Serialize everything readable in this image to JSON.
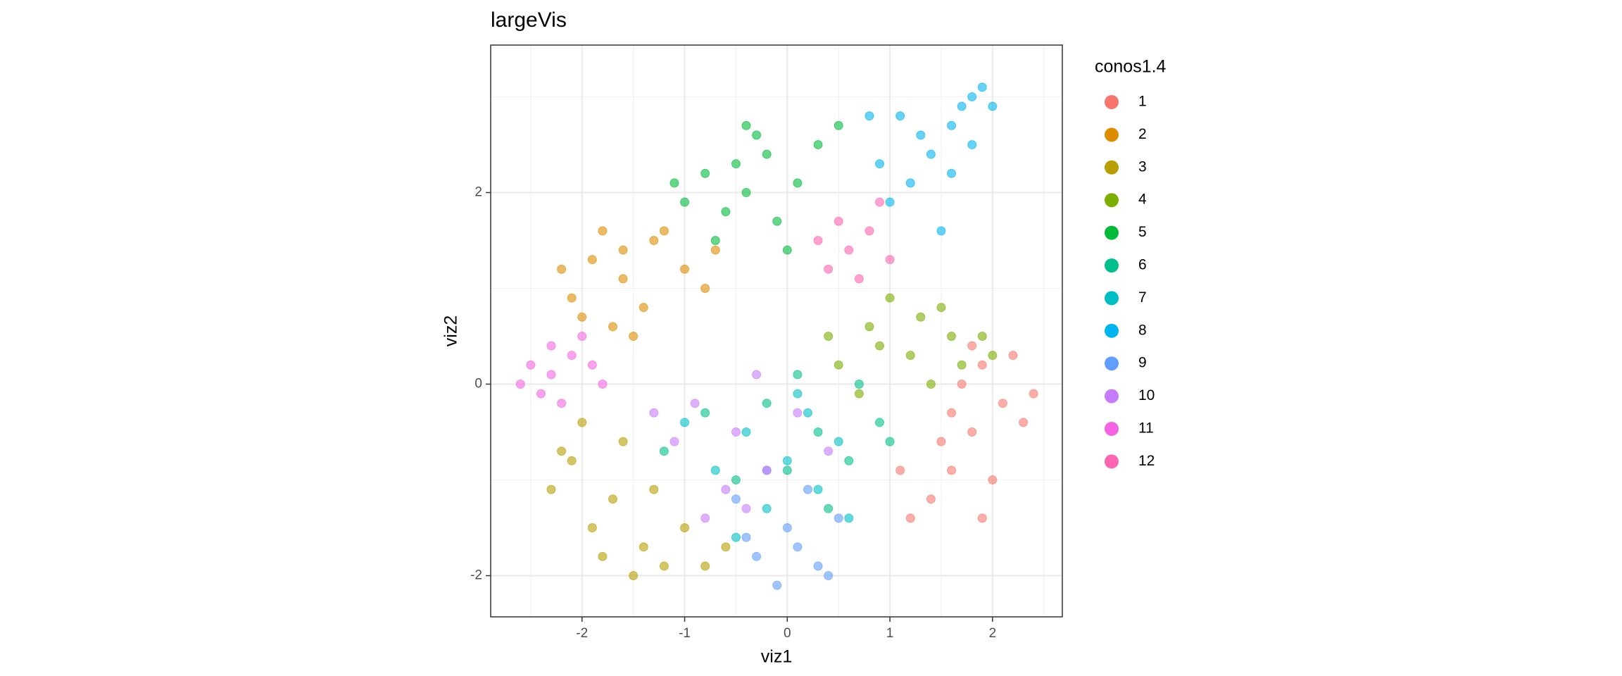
{
  "chart_data": {
    "type": "scatter",
    "title": "largeVis",
    "xlabel": "viz1",
    "ylabel": "viz2",
    "legend_title": "conos1.4",
    "legend": "right",
    "grid": true,
    "xlim": [
      -2.89,
      2.68
    ],
    "ylim": [
      -2.43,
      3.54
    ],
    "xticks": [
      -2,
      -1,
      0,
      1,
      2
    ],
    "yticks": [
      -2,
      0,
      2
    ],
    "x_minor_ticks": [
      -2.5,
      -1.5,
      -0.5,
      0.5,
      1.5,
      2.5
    ],
    "y_minor_ticks": [
      -1,
      1,
      3
    ],
    "series": [
      {
        "name": "1",
        "color": "#F8766D",
        "x": [
          1.8,
          2.1,
          1.6,
          2.3,
          1.9,
          1.4,
          2.0,
          1.7,
          2.2,
          1.5,
          1.2,
          1.9,
          1.6,
          2.4,
          1.1,
          1.8
        ],
        "y": [
          -0.5,
          -0.2,
          -0.9,
          -0.4,
          0.2,
          -1.2,
          -1.0,
          0.0,
          0.3,
          -0.6,
          -1.4,
          -1.4,
          -0.3,
          -0.1,
          -0.9,
          0.4
        ]
      },
      {
        "name": "2",
        "color": "#DE8C00",
        "x": [
          -1.6,
          -1.9,
          -1.3,
          -2.1,
          -1.7,
          -1.0,
          -1.4,
          -2.2,
          -1.8,
          -0.8,
          -1.2,
          -1.5,
          -2.0,
          -0.7,
          -1.6
        ],
        "y": [
          1.1,
          1.3,
          1.5,
          0.9,
          0.6,
          1.2,
          0.8,
          1.2,
          1.6,
          1.0,
          1.6,
          0.5,
          0.7,
          1.4,
          1.4
        ]
      },
      {
        "name": "3",
        "color": "#B79F00",
        "x": [
          -1.7,
          -2.1,
          -1.4,
          -2.3,
          -1.9,
          -1.2,
          -1.6,
          -1.0,
          -2.0,
          -0.8,
          -1.3,
          -1.8,
          -2.2,
          -0.6,
          -1.5
        ],
        "y": [
          -1.2,
          -0.8,
          -1.7,
          -1.1,
          -1.5,
          -1.9,
          -0.6,
          -1.5,
          -0.4,
          -1.9,
          -1.1,
          -1.8,
          -0.7,
          -1.7,
          -2.0
        ]
      },
      {
        "name": "4",
        "color": "#7CAE00",
        "x": [
          1.2,
          0.8,
          1.6,
          1.4,
          0.5,
          1.9,
          1.0,
          1.7,
          0.7,
          1.3,
          2.0,
          0.9,
          1.5,
          0.4
        ],
        "y": [
          0.3,
          0.6,
          0.5,
          0.0,
          0.2,
          0.5,
          0.9,
          0.2,
          -0.1,
          0.7,
          0.3,
          0.4,
          0.8,
          0.5
        ]
      },
      {
        "name": "5",
        "color": "#00BA38",
        "x": [
          -0.4,
          -0.8,
          -0.2,
          -0.6,
          0.1,
          -1.0,
          -0.3,
          0.3,
          -0.7,
          -0.1,
          0.5,
          -1.1,
          -0.5,
          0.0,
          -0.4
        ],
        "y": [
          2.0,
          2.2,
          2.4,
          1.8,
          2.1,
          1.9,
          2.6,
          2.5,
          1.5,
          1.7,
          2.7,
          2.1,
          2.3,
          1.4,
          2.7
        ]
      },
      {
        "name": "6",
        "color": "#00C08B",
        "x": [
          0.3,
          -0.2,
          0.6,
          0.1,
          0.9,
          -0.5,
          0.4,
          -0.8,
          0.7,
          0.0,
          -1.2,
          1.0
        ],
        "y": [
          -0.5,
          -0.2,
          -0.8,
          0.1,
          -0.4,
          -1.0,
          -1.3,
          -0.3,
          0.0,
          -0.9,
          -0.7,
          -0.6
        ]
      },
      {
        "name": "7",
        "color": "#00BFC4",
        "x": [
          0.0,
          -0.4,
          0.3,
          -0.7,
          0.5,
          -0.2,
          0.2,
          -1.0,
          0.6,
          -0.5,
          0.1
        ],
        "y": [
          -0.8,
          -0.5,
          -1.1,
          -0.9,
          -0.6,
          -1.3,
          -0.3,
          -0.4,
          -1.4,
          -1.6,
          -0.1
        ]
      },
      {
        "name": "8",
        "color": "#00B4F0",
        "x": [
          1.4,
          1.7,
          1.9,
          1.2,
          1.6,
          1.0,
          1.8,
          1.3,
          0.9,
          1.5,
          2.0,
          1.1,
          1.6,
          0.8,
          1.8
        ],
        "y": [
          2.4,
          2.9,
          3.1,
          2.1,
          2.7,
          1.9,
          3.0,
          2.6,
          2.3,
          1.6,
          2.9,
          2.8,
          2.2,
          2.8,
          2.5
        ]
      },
      {
        "name": "9",
        "color": "#619CFF",
        "x": [
          0.0,
          -0.3,
          0.3,
          -0.1,
          0.5,
          -0.5,
          0.2,
          -0.2,
          0.4,
          0.1,
          -0.4
        ],
        "y": [
          -1.5,
          -1.8,
          -1.9,
          -2.1,
          -1.4,
          -1.2,
          -1.1,
          -0.9,
          -2.0,
          -1.7,
          -1.6
        ]
      },
      {
        "name": "10",
        "color": "#C77CFF",
        "x": [
          -0.5,
          -0.9,
          -0.2,
          -0.6,
          0.1,
          -1.1,
          -0.3,
          -0.8,
          0.4,
          -0.4,
          -1.3
        ],
        "y": [
          -0.5,
          -0.2,
          -0.9,
          -1.1,
          -0.3,
          -0.6,
          0.1,
          -1.4,
          -0.7,
          -1.3,
          -0.3
        ]
      },
      {
        "name": "11",
        "color": "#F564E3",
        "x": [
          -2.3,
          -2.5,
          -2.1,
          -2.6,
          -2.2,
          -1.9,
          -2.4,
          -2.0,
          -1.8,
          -2.3
        ],
        "y": [
          0.1,
          0.2,
          0.3,
          0.0,
          -0.2,
          0.2,
          -0.1,
          0.5,
          0.0,
          0.4
        ]
      },
      {
        "name": "12",
        "color": "#FF64B0",
        "x": [
          0.6,
          0.8,
          0.4,
          0.9,
          0.3,
          1.0,
          0.5,
          0.7
        ],
        "y": [
          1.4,
          1.6,
          1.2,
          1.9,
          1.5,
          1.3,
          1.7,
          1.1
        ]
      }
    ]
  }
}
